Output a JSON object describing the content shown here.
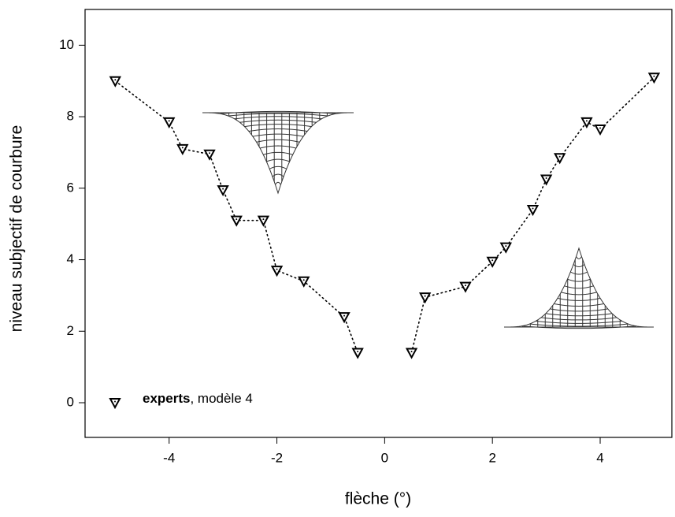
{
  "chart_data": {
    "type": "line",
    "x_label": "flèche (°)",
    "y_label": "niveau subjectif de courbure",
    "xlim": [
      -5.56,
      5.33
    ],
    "ylim": [
      -0.97,
      11.0
    ],
    "xticks": [
      -4,
      -2,
      0,
      2,
      4
    ],
    "yticks": [
      0,
      2,
      4,
      6,
      8,
      10
    ],
    "grid": false,
    "legend": "lower left",
    "series": [
      {
        "name": "experts, modèle 4",
        "color": "#000000",
        "x": [
          -5,
          -4,
          -3.75,
          -3.25,
          -3,
          -2.75,
          -2.25,
          -2,
          -1.5,
          -0.75,
          -0.5,
          null,
          0.5,
          0.75,
          1.5,
          2,
          2.25,
          2.75,
          3,
          3.25,
          3.75,
          4,
          5
        ],
        "values": [
          9.0,
          7.85,
          7.1,
          6.95,
          5.95,
          5.1,
          5.1,
          3.7,
          3.4,
          2.4,
          1.4,
          null,
          1.4,
          2.95,
          3.25,
          3.95,
          4.35,
          5.4,
          6.25,
          6.85,
          7.85,
          7.65,
          9.1
        ]
      }
    ]
  }
}
